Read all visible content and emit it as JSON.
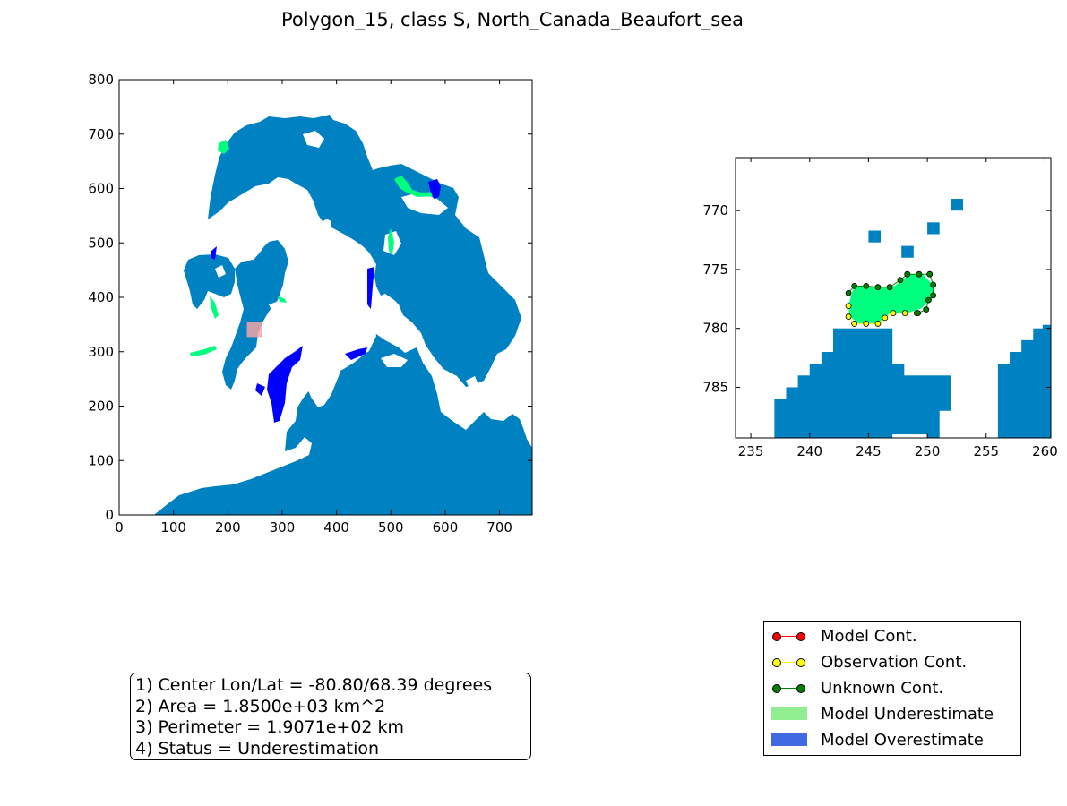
{
  "title": "Polygon_15, class S, North_Canada_Beaufort_sea",
  "colors": {
    "ocean": "#0081c2",
    "underestimate_fill": "#00ff7f",
    "overestimate_fill": "#0000ff",
    "highlight": "#f4a6a6",
    "model_cont": "#ff0000",
    "observation_cont": "#ffff00",
    "unknown_cont": "#008000",
    "legend_underestimate": "#90ee90",
    "legend_overestimate": "#4169e1"
  },
  "chart_data": [
    {
      "type": "heatmap",
      "panel": "overview-map",
      "xlim": [
        0,
        760
      ],
      "ylim": [
        0,
        800
      ],
      "xticks": [
        0,
        100,
        200,
        300,
        400,
        500,
        600,
        700
      ],
      "yticks": [
        0,
        100,
        200,
        300,
        400,
        500,
        600,
        700,
        800
      ],
      "highlight_box": {
        "x": [
          235,
          262
        ],
        "y": [
          327,
          354
        ]
      }
    },
    {
      "type": "heatmap",
      "panel": "zoom-map",
      "xlim": [
        233.7,
        260.5
      ],
      "ylim": [
        789.3,
        765.5
      ],
      "xticks": [
        235,
        240,
        245,
        250,
        255,
        260
      ],
      "yticks": [
        770,
        775,
        780,
        785
      ],
      "ocean_cells": [
        [
          245.5,
          772.2,
          1
        ],
        [
          248.3,
          773.5,
          1
        ],
        [
          250.5,
          771.5,
          1
        ],
        [
          252.5,
          769.5,
          1
        ],
        [
          237.5,
          786.5,
          12
        ],
        [
          238.5,
          785.5,
          12
        ],
        [
          239.5,
          784.5,
          12
        ],
        [
          240.5,
          783.5,
          11
        ],
        [
          241.5,
          782.5,
          13
        ],
        [
          242.5,
          780.5,
          17
        ],
        [
          243.5,
          780.5,
          17
        ],
        [
          244.5,
          780.5,
          17
        ],
        [
          245.5,
          780.5,
          17
        ],
        [
          246.5,
          780.5,
          17
        ],
        [
          247.5,
          783.5,
          6
        ],
        [
          248.5,
          784.5,
          5
        ],
        [
          249.5,
          784.5,
          5
        ],
        [
          250.5,
          784.5,
          6
        ],
        [
          251.5,
          784.5,
          3
        ],
        [
          256.5,
          783.5,
          7
        ],
        [
          257.5,
          782.5,
          9
        ],
        [
          258.5,
          781.5,
          11
        ],
        [
          259.5,
          780.5,
          13
        ],
        [
          260.3,
          780.2,
          14
        ]
      ],
      "underestimate_polygon": [
        [
          243.8,
          776.4
        ],
        [
          244.8,
          776.4
        ],
        [
          245.8,
          776.5
        ],
        [
          247.2,
          776.4
        ],
        [
          248,
          775.8
        ],
        [
          248.5,
          775.4
        ],
        [
          249.6,
          775.4
        ],
        [
          250.5,
          776.3
        ],
        [
          250.6,
          777.3
        ],
        [
          250.1,
          777.7
        ],
        [
          249.5,
          778.3
        ],
        [
          248.3,
          778.7
        ],
        [
          246.8,
          778.7
        ],
        [
          246.3,
          779.2
        ],
        [
          245.6,
          779.6
        ],
        [
          244.2,
          779.6
        ],
        [
          243.4,
          779.0
        ],
        [
          243.3,
          778.0
        ],
        [
          243.6,
          777.0
        ]
      ],
      "observation_contour": [
        [
          243.3,
          778.1
        ],
        [
          243.3,
          779.0
        ],
        [
          243.8,
          779.6
        ],
        [
          244.8,
          779.6
        ],
        [
          245.8,
          779.6
        ],
        [
          246.4,
          779.1
        ],
        [
          247.1,
          778.7
        ],
        [
          248.1,
          778.7
        ],
        [
          249.1,
          778.7
        ]
      ],
      "unknown_contour": [
        [
          243.3,
          777.0
        ],
        [
          243.8,
          776.4
        ],
        [
          244.8,
          776.4
        ],
        [
          245.8,
          776.5
        ],
        [
          246.8,
          776.5
        ],
        [
          247.7,
          775.9
        ],
        [
          248.3,
          775.4
        ],
        [
          249.3,
          775.4
        ],
        [
          250.2,
          775.4
        ],
        [
          250.5,
          776.3
        ],
        [
          250.5,
          777.2
        ],
        [
          250.1,
          777.6
        ],
        [
          249.9,
          778.4
        ],
        [
          249.2,
          778.7
        ]
      ]
    }
  ],
  "info_box": {
    "line1": "1) Center Lon/Lat = -80.80/68.39 degrees",
    "line2": "2) Area = 1.8500e+03 km^2",
    "line3": "3) Perimeter = 1.9071e+02 km",
    "line4": "4) Status = Underestimation"
  },
  "legend": {
    "items": [
      {
        "label": "Model Cont.",
        "kind": "line"
      },
      {
        "label": "Observation Cont.",
        "kind": "line"
      },
      {
        "label": "Unknown Cont.",
        "kind": "line"
      },
      {
        "label": "Model Underestimate",
        "kind": "patch"
      },
      {
        "label": "Model Overestimate",
        "kind": "patch"
      }
    ]
  }
}
